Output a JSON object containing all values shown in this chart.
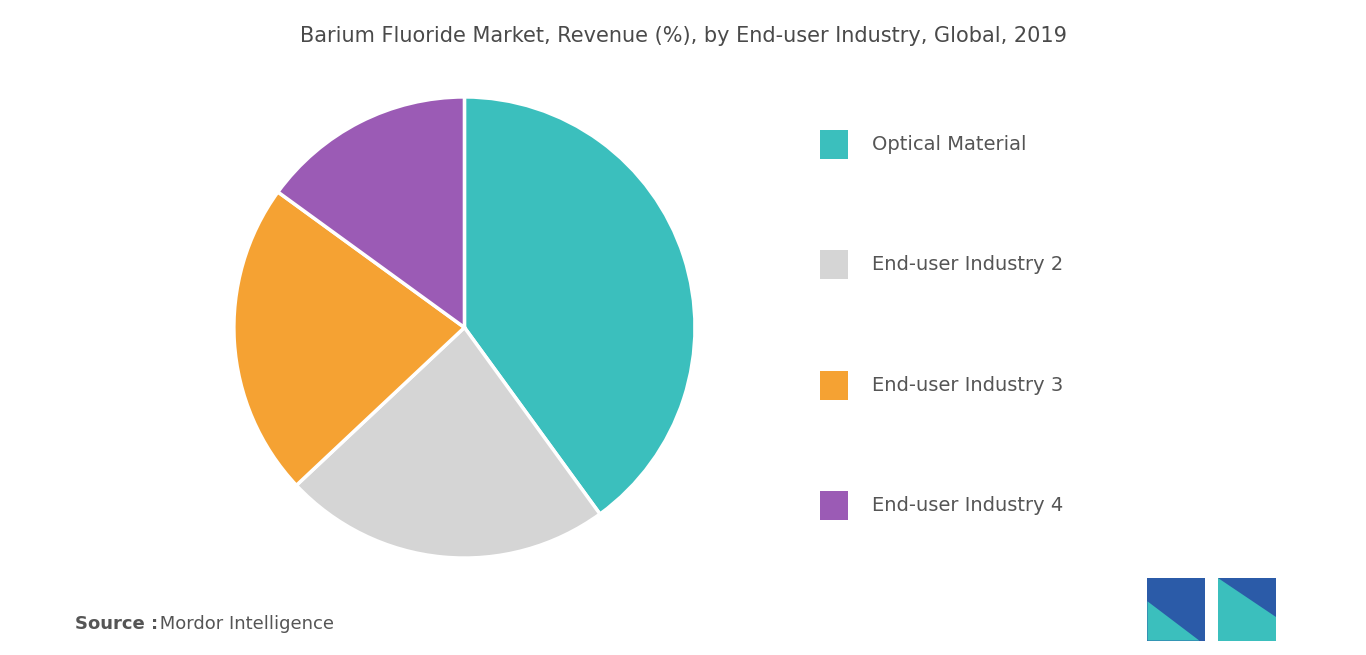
{
  "title": "Barium Fluoride Market, Revenue (%), by End-user Industry, Global, 2019",
  "labels": [
    "Optical Material",
    "End-user Industry 2",
    "End-user Industry 3",
    "End-user Industry 4"
  ],
  "values": [
    40,
    23,
    22,
    15
  ],
  "colors": [
    "#3bbfbd",
    "#d5d5d5",
    "#f5a233",
    "#9b5bb5"
  ],
  "legend_labels": [
    "Optical Material",
    "End-user Industry 2",
    "End-user Industry 3",
    "End-user Industry 4"
  ],
  "source_bold": "Source :",
  "source_normal": " Mordor Intelligence",
  "background_color": "#ffffff",
  "title_fontsize": 15,
  "legend_fontsize": 14,
  "source_fontsize": 13,
  "startangle": 90
}
